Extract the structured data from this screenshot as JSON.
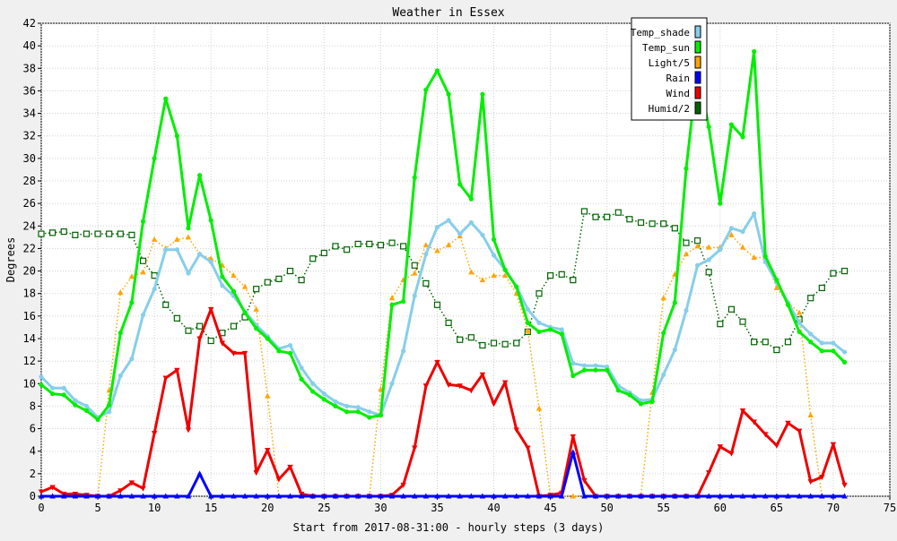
{
  "chart_data": {
    "type": "line",
    "title": "Weather in Essex",
    "xlabel": "Start from 2017-08-31:00 - hourly steps (3 days)",
    "ylabel": "Degrees",
    "xlim": [
      0,
      75
    ],
    "ylim": [
      0,
      42
    ],
    "xticks": [
      0,
      5,
      10,
      15,
      20,
      25,
      30,
      35,
      40,
      45,
      50,
      55,
      60,
      65,
      70,
      75
    ],
    "yticks": [
      0,
      2,
      4,
      6,
      8,
      10,
      12,
      14,
      16,
      18,
      20,
      22,
      24,
      26,
      28,
      30,
      32,
      34,
      36,
      38,
      40,
      42
    ],
    "grid": true,
    "legend_position": "top-right",
    "series": [
      {
        "name": "Temp_shade",
        "color": "#87ceeb",
        "style": "solid",
        "marker": "circle",
        "values": [
          10.6,
          9.6,
          9.6,
          8.5,
          8.0,
          7.0,
          7.5,
          10.7,
          12.2,
          16.1,
          18.4,
          21.9,
          21.9,
          19.8,
          21.5,
          20.8,
          18.7,
          17.8,
          16.4,
          15.2,
          14.2,
          13.1,
          13.4,
          11.4,
          10.0,
          9.1,
          8.4,
          8.0,
          7.9,
          7.5,
          7.2,
          10.0,
          12.9,
          17.8,
          21.5,
          23.9,
          24.5,
          23.3,
          24.3,
          23.2,
          21.4,
          20.1,
          18.6,
          16.6,
          15.4,
          15.0,
          14.8,
          11.8,
          11.6,
          11.6,
          11.5,
          9.8,
          9.2,
          8.5,
          8.6,
          10.8,
          13.0,
          16.5,
          20.5,
          21.0,
          21.9,
          23.8,
          23.5,
          25.1,
          20.8,
          19.0,
          17.2,
          15.4,
          14.4,
          13.6,
          13.6,
          12.8
        ]
      },
      {
        "name": "Temp_sun",
        "color": "#00ee00",
        "style": "solid",
        "marker": "circle",
        "values": [
          9.9,
          9.1,
          9.0,
          8.1,
          7.6,
          6.8,
          8.1,
          14.5,
          17.2,
          24.4,
          30.0,
          35.3,
          32.0,
          23.8,
          28.5,
          24.5,
          19.5,
          18.2,
          16.3,
          14.9,
          14.0,
          12.9,
          12.7,
          10.4,
          9.3,
          8.6,
          8.0,
          7.5,
          7.5,
          7.0,
          7.2,
          17.0,
          17.3,
          28.3,
          36.1,
          37.8,
          35.7,
          27.7,
          26.4,
          35.7,
          22.8,
          20.1,
          18.6,
          15.4,
          14.6,
          14.8,
          14.4,
          10.7,
          11.2,
          11.2,
          11.2,
          9.4,
          9.0,
          8.2,
          8.4,
          14.5,
          17.2,
          29.1,
          38.0,
          32.8,
          26.0,
          33.0,
          31.9,
          39.5,
          21.3,
          19.2,
          17.0,
          14.6,
          13.7,
          12.9,
          12.9,
          11.9
        ]
      },
      {
        "name": "Light/5",
        "color": "#ffa500",
        "style": "dotted",
        "marker": "triangle",
        "values": [
          0,
          0,
          0,
          0,
          0,
          0,
          9.4,
          18.1,
          19.5,
          19.9,
          22.8,
          22.0,
          22.8,
          23.0,
          21.5,
          21.1,
          20.5,
          19.6,
          18.6,
          16.6,
          8.9,
          0,
          0,
          0,
          0,
          0,
          0,
          0,
          0,
          0,
          9.5,
          17.6,
          19.2,
          19.8,
          22.3,
          21.8,
          22.3,
          23.1,
          19.9,
          19.2,
          19.6,
          19.6,
          18.0,
          14.7,
          7.8,
          0,
          0,
          0,
          0,
          0,
          0,
          0,
          0,
          0,
          9.2,
          17.6,
          19.7,
          21.5,
          22.2,
          22.1,
          22.1,
          23.2,
          22.1,
          21.2,
          21.2,
          18.5,
          17.2,
          16.3,
          7.2,
          0,
          0,
          0
        ]
      },
      {
        "name": "Rain",
        "color": "#0000ff",
        "style": "solid",
        "marker": "triangle",
        "values": [
          0,
          0,
          0,
          0,
          0,
          0,
          0,
          0,
          0,
          0,
          0,
          0,
          0,
          0,
          2.0,
          0,
          0,
          0,
          0,
          0,
          0,
          0,
          0,
          0,
          0,
          0,
          0,
          0,
          0,
          0,
          0,
          0,
          0,
          0,
          0,
          0,
          0,
          0,
          0,
          0,
          0,
          0,
          0,
          0,
          0,
          0,
          0,
          3.9,
          0,
          0,
          0,
          0,
          0,
          0,
          0,
          0,
          0,
          0,
          0,
          0,
          0,
          0,
          0,
          0,
          0,
          0,
          0,
          0,
          0,
          0,
          0,
          0
        ]
      },
      {
        "name": "Wind",
        "color": "#ee0000",
        "style": "solid",
        "marker": "triangle-down",
        "values": [
          0.4,
          0.8,
          0.2,
          0.2,
          0.1,
          0,
          0,
          0.5,
          1.2,
          0.7,
          5.6,
          10.5,
          11.2,
          5.9,
          14.0,
          16.6,
          13.6,
          12.7,
          12.7,
          2.1,
          4.1,
          1.5,
          2.6,
          0.2,
          0,
          0,
          0,
          0,
          0,
          0,
          0,
          0.1,
          1.0,
          4.3,
          9.8,
          11.9,
          9.9,
          9.8,
          9.4,
          10.8,
          8.2,
          10.1,
          5.9,
          4.3,
          0,
          0.1,
          0.3,
          5.3,
          1.4,
          0,
          0,
          0,
          0,
          0,
          0,
          0,
          0,
          0,
          0,
          2.1,
          4.4,
          3.8,
          7.6,
          6.6,
          5.5,
          4.5,
          6.5,
          5.8,
          1.3,
          1.7,
          4.6,
          1.0
        ]
      },
      {
        "name": "Humid/2",
        "color": "#006400",
        "style": "dotted",
        "marker": "square",
        "values": [
          23.3,
          23.4,
          23.5,
          23.2,
          23.3,
          23.3,
          23.3,
          23.3,
          23.2,
          20.9,
          19.6,
          17.0,
          15.8,
          14.7,
          15.1,
          13.8,
          14.5,
          15.1,
          15.9,
          18.4,
          19.0,
          19.3,
          20.0,
          19.2,
          21.1,
          21.6,
          22.2,
          21.9,
          22.4,
          22.4,
          22.3,
          22.5,
          22.2,
          20.5,
          18.9,
          17.0,
          15.4,
          13.9,
          14.1,
          13.4,
          13.6,
          13.5,
          13.6,
          14.6,
          18.0,
          19.6,
          19.7,
          19.2,
          25.3,
          24.8,
          24.8,
          25.2,
          24.6,
          24.3,
          24.2,
          24.2,
          23.8,
          22.5,
          22.7,
          19.9,
          15.3,
          16.6,
          15.5,
          13.7,
          13.7,
          13.0,
          13.7,
          15.7,
          17.6,
          18.5,
          19.8,
          20.0
        ]
      }
    ]
  }
}
